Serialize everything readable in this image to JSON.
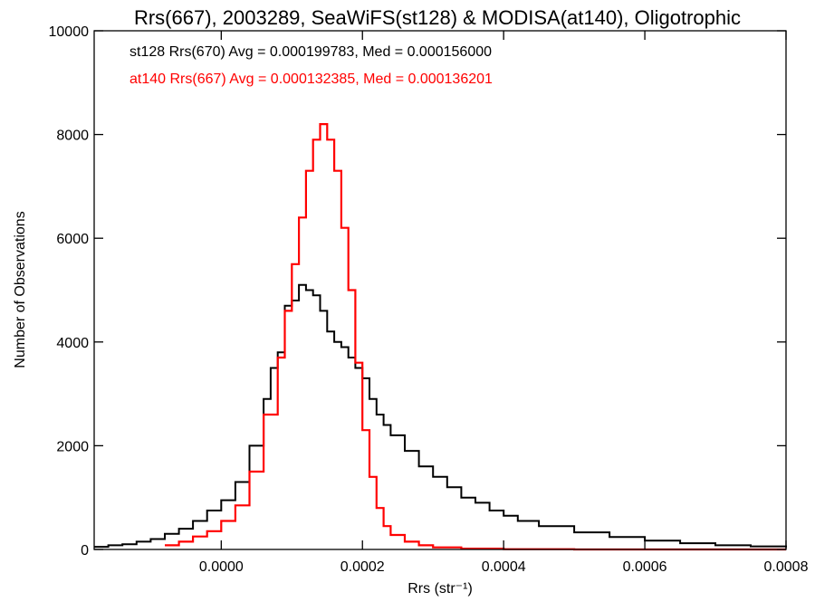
{
  "chart_data": {
    "type": "line",
    "style": "step-histogram",
    "title": "Rrs(667), 2003289, SeaWiFS(st128) & MODISA(at140), Oligotrophic",
    "xlabel": "Rrs (str⁻¹)",
    "ylabel": "Number of Observations",
    "xlim": [
      -0.00018,
      0.0008
    ],
    "ylim": [
      0,
      10000
    ],
    "x_ticks": [
      0.0,
      0.0002,
      0.0004,
      0.0006,
      0.0008
    ],
    "x_tick_labels": [
      "0.0000",
      "0.0002",
      "0.0004",
      "0.0006",
      "0.0008"
    ],
    "y_ticks": [
      0,
      2000,
      4000,
      6000,
      8000,
      10000
    ],
    "y_tick_labels": [
      "0",
      "2000",
      "4000",
      "6000",
      "8000",
      "10000"
    ],
    "grid": false,
    "legend_position": "top-left",
    "annotations": [
      {
        "text": "st128 Rrs(670) Avg = 0.000199783, Med = 0.000156000",
        "color": "#000000"
      },
      {
        "text": "at140 Rrs(667) Avg = 0.000132385, Med = 0.000136201",
        "color": "#ff0000"
      }
    ],
    "series": [
      {
        "color": "#000000",
        "x": [
          -0.00018,
          -0.00016,
          -0.00014,
          -0.00012,
          -0.0001,
          -8e-05,
          -6e-05,
          -4e-05,
          -2e-05,
          0.0,
          2e-05,
          4e-05,
          6e-05,
          7e-05,
          8e-05,
          9e-05,
          0.0001,
          0.00011,
          0.00012,
          0.00013,
          0.00014,
          0.00015,
          0.00016,
          0.00017,
          0.00018,
          0.00019,
          0.0002,
          0.00021,
          0.00022,
          0.00023,
          0.00024,
          0.00026,
          0.00028,
          0.0003,
          0.00032,
          0.00034,
          0.00036,
          0.00038,
          0.0004,
          0.00042,
          0.00045,
          0.0005,
          0.00055,
          0.0006,
          0.00065,
          0.0007,
          0.00075,
          0.0008
        ],
        "y": [
          50,
          80,
          100,
          150,
          200,
          300,
          400,
          550,
          750,
          950,
          1300,
          2000,
          2900,
          3500,
          3800,
          4700,
          4800,
          5100,
          5000,
          4900,
          4600,
          4200,
          4000,
          3900,
          3700,
          3500,
          3300,
          2900,
          2600,
          2400,
          2200,
          1900,
          1600,
          1400,
          1200,
          1000,
          900,
          750,
          650,
          550,
          450,
          330,
          240,
          170,
          120,
          80,
          60,
          40
        ]
      },
      {
        "color": "#ff0000",
        "x": [
          -8e-05,
          -6e-05,
          -4e-05,
          -2e-05,
          0.0,
          2e-05,
          4e-05,
          6e-05,
          8e-05,
          9e-05,
          0.0001,
          0.00011,
          0.00012,
          0.00013,
          0.00014,
          0.000145,
          0.00015,
          0.00016,
          0.00017,
          0.00018,
          0.00019,
          0.0002,
          0.00021,
          0.00022,
          0.00023,
          0.00024,
          0.00026,
          0.00028,
          0.0003,
          0.00034,
          0.0004,
          0.0005,
          0.0006,
          0.0008
        ],
        "y": [
          80,
          150,
          250,
          350,
          550,
          850,
          1500,
          2600,
          3700,
          4600,
          5500,
          6400,
          7300,
          7900,
          8200,
          8200,
          7900,
          7300,
          6200,
          5000,
          3600,
          2300,
          1400,
          800,
          450,
          280,
          150,
          80,
          40,
          15,
          5,
          0,
          0,
          0
        ]
      }
    ]
  }
}
